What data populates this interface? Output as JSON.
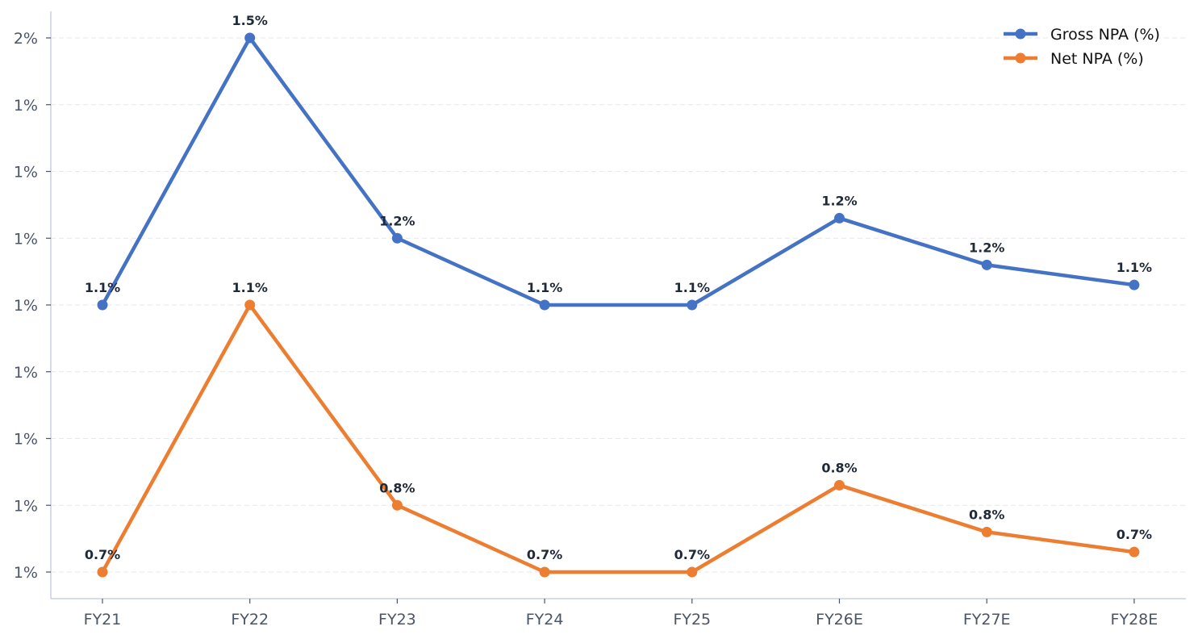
{
  "chart_data": {
    "type": "line",
    "categories": [
      "FY21",
      "FY22",
      "FY23",
      "FY24",
      "FY25",
      "FY26E",
      "FY27E",
      "FY28E"
    ],
    "series": [
      {
        "name": "Gross NPA (%)",
        "color": "#4472c4",
        "values": [
          1.1,
          1.5,
          1.2,
          1.1,
          1.1,
          1.23,
          1.16,
          1.13
        ],
        "labels": [
          "1.1%",
          "1.5%",
          "1.2%",
          "1.1%",
          "1.1%",
          "1.2%",
          "1.2%",
          "1.1%"
        ]
      },
      {
        "name": "Net NPA (%)",
        "color": "#ed7d31",
        "values": [
          0.7,
          1.1,
          0.8,
          0.7,
          0.7,
          0.83,
          0.76,
          0.73
        ],
        "labels": [
          "0.7%",
          "1.1%",
          "0.8%",
          "0.7%",
          "0.7%",
          "0.8%",
          "0.8%",
          "0.7%"
        ]
      }
    ],
    "y_ticks": [
      0.7,
      0.8,
      0.9,
      1.0,
      1.1,
      1.2,
      1.3,
      1.4,
      1.5
    ],
    "y_tick_labels": [
      "1%",
      "1%",
      "1%",
      "1%",
      "1%",
      "1%",
      "1%",
      "1%",
      "2%"
    ],
    "ylim": [
      0.66,
      1.54
    ],
    "grid": "horizontal dashed",
    "legend_position": "top-right"
  }
}
